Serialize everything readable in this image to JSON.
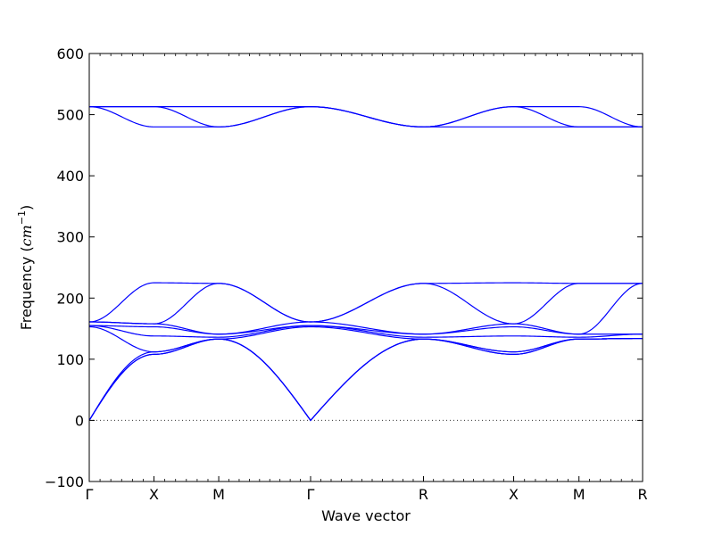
{
  "chart_data": {
    "type": "line",
    "title": "",
    "xlabel": "Wave vector",
    "ylabel_text": "Frequency (",
    "ylabel_unit": "cm",
    "ylabel_exp": "−1",
    "ylabel_close": ")",
    "ylim": [
      -100,
      600
    ],
    "yticks": [
      -100,
      0,
      100,
      200,
      300,
      400,
      500,
      600
    ],
    "xlim": [
      0,
      1
    ],
    "xticks": [
      {
        "x": 0.0,
        "label": "Γ"
      },
      {
        "x": 0.117,
        "label": "X"
      },
      {
        "x": 0.234,
        "label": "M"
      },
      {
        "x": 0.4,
        "label": "Γ"
      },
      {
        "x": 0.604,
        "label": "R"
      },
      {
        "x": 0.767,
        "label": "X"
      },
      {
        "x": 0.885,
        "label": "M"
      },
      {
        "x": 1.0,
        "label": "R"
      }
    ],
    "zero_line": {
      "y": 0,
      "style": "dotted",
      "color": "#333333"
    },
    "line_color": "#0000ff",
    "series": [
      {
        "x": [
          0,
          0.117,
          0.234,
          0.4,
          0.604,
          0.767,
          0.885,
          1.0
        ],
        "y": [
          513,
          513,
          513,
          513,
          480,
          513,
          513,
          480
        ]
      },
      {
        "x": [
          0,
          0.117,
          0.234,
          0.4,
          0.604,
          0.767,
          0.885,
          1.0
        ],
        "y": [
          513,
          513,
          480,
          513,
          480,
          513,
          480,
          480
        ]
      },
      {
        "x": [
          0,
          0.117,
          0.234,
          0.4,
          0.604,
          0.767,
          0.885,
          1.0
        ],
        "y": [
          513,
          480,
          480,
          513,
          480,
          480,
          480,
          480
        ]
      },
      {
        "x": [
          0,
          0.117,
          0.234,
          0.4,
          0.604,
          0.767,
          0.885,
          1.0
        ],
        "y": [
          161,
          225,
          224,
          161,
          224,
          225,
          224,
          224
        ]
      },
      {
        "x": [
          0,
          0.117,
          0.234,
          0.4,
          0.604,
          0.767,
          0.885,
          1.0
        ],
        "y": [
          161,
          158,
          224,
          161,
          224,
          158,
          224,
          224
        ]
      },
      {
        "x": [
          0,
          0.117,
          0.234,
          0.4,
          0.604,
          0.767,
          0.885,
          1.0
        ],
        "y": [
          161,
          158,
          141,
          161,
          141,
          158,
          141,
          224
        ]
      },
      {
        "x": [
          0,
          0.117,
          0.234,
          0.4,
          0.604,
          0.767,
          0.885,
          1.0
        ],
        "y": [
          155,
          153,
          141,
          155,
          141,
          153,
          141,
          141
        ]
      },
      {
        "x": [
          0,
          0.117,
          0.234,
          0.4,
          0.604,
          0.767,
          0.885,
          1.0
        ],
        "y": [
          155,
          138,
          136,
          155,
          136,
          138,
          136,
          141
        ]
      },
      {
        "x": [
          0,
          0.117,
          0.234,
          0.4,
          0.604,
          0.767,
          0.885,
          1.0
        ],
        "y": [
          153,
          112,
          133,
          153,
          133,
          112,
          133,
          134
        ]
      },
      {
        "x": [
          0,
          0.117,
          0.234,
          0.4,
          0.604,
          0.767,
          0.885,
          1.0
        ],
        "y": [
          0,
          112,
          133,
          0,
          133,
          112,
          133,
          134
        ]
      },
      {
        "x": [
          0,
          0.117,
          0.234,
          0.4,
          0.604,
          0.767,
          0.885,
          1.0
        ],
        "y": [
          0,
          108,
          133,
          0,
          133,
          108,
          133,
          134
        ]
      },
      {
        "x": [
          0,
          0.117,
          0.234,
          0.4,
          0.604,
          0.767,
          0.885,
          1.0
        ],
        "y": [
          0,
          108,
          133,
          0,
          133,
          108,
          133,
          134
        ]
      }
    ]
  }
}
